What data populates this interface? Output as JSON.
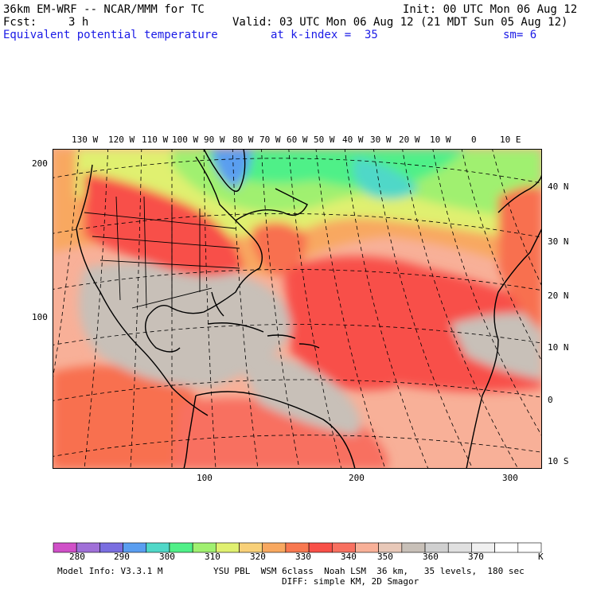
{
  "header": {
    "model_title": "36km EM-WRF -- NCAR/MMM for TC",
    "init": "Init: 00 UTC Mon 06 Aug 12",
    "fcst_label": "Fcst:",
    "fcst_value": "3 h",
    "valid": "Valid: 03 UTC Mon 06 Aug 12 (21 MDT Sun 05 Aug 12)",
    "field_name": "Equivalent potential temperature",
    "level": "at k-index =  35",
    "smoothing": "sm= 6"
  },
  "axes": {
    "top_lon_labels": [
      "130 W",
      "120 W",
      "110 W",
      "100 W",
      "90 W",
      "80 W",
      "70 W",
      "60 W",
      "50 W",
      "40 W",
      "30 W",
      "20 W",
      "10 W",
      "0",
      "10 E"
    ],
    "right_lat_labels": [
      "40 N",
      "30 N",
      "20 N",
      "10 N",
      "0",
      "10 S"
    ],
    "left_grid_labels": [
      "200",
      "100"
    ],
    "bottom_grid_labels": [
      "100",
      "200",
      "300"
    ]
  },
  "colorbar": {
    "labels": [
      "280",
      "290",
      "300",
      "310",
      "320",
      "330",
      "340",
      "350",
      "360",
      "370"
    ],
    "unit": "K",
    "colors": [
      "#d050c8",
      "#a070d8",
      "#7a6ee0",
      "#5a9ef0",
      "#50d8c8",
      "#50f088",
      "#a0f070",
      "#e0f070",
      "#f8d078",
      "#f8a860",
      "#f87850",
      "#f85048",
      "#f87060",
      "#f8b098",
      "#e8c8b8",
      "#c8c0b8",
      "#d0d0d0",
      "#e0e0e0",
      "#f0f0f0",
      "#ffffff",
      "#ffffff"
    ]
  },
  "footer": {
    "model_info": "Model Info: V3.3.1 M",
    "physics": "YSU PBL  WSM 6class  Noah LSM  36 km,   35 levels,  180 sec",
    "diffusion": "DIFF: simple KM, 2D Smagor"
  }
}
